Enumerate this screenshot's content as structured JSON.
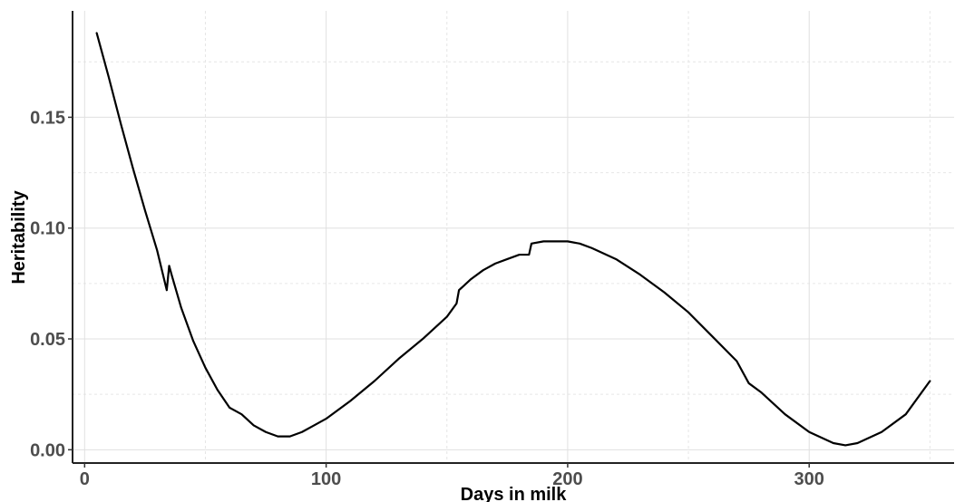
{
  "chart_data": {
    "type": "line",
    "title": "",
    "xlabel": "Days in milk",
    "ylabel": "Heritability",
    "xlim": [
      -5,
      360
    ],
    "ylim": [
      -0.006,
      0.198
    ],
    "x_ticks": [
      0,
      100,
      200,
      300
    ],
    "x_tick_labels": [
      "0",
      "100",
      "200",
      "300"
    ],
    "y_ticks": [
      0.0,
      0.05,
      0.1,
      0.15
    ],
    "y_tick_labels": [
      "0.00",
      "0.05",
      "0.10",
      "0.15"
    ],
    "grid": true,
    "legend": "none",
    "line_color": "#000000",
    "series": [
      {
        "x": [
          5,
          10,
          15,
          20,
          25,
          30,
          34,
          35,
          36,
          40,
          45,
          50,
          55,
          60,
          65,
          70,
          75,
          80,
          85,
          90,
          95,
          100,
          110,
          120,
          130,
          140,
          150,
          154,
          155,
          160,
          165,
          170,
          175,
          180,
          184,
          185,
          190,
          195,
          200,
          205,
          210,
          220,
          230,
          240,
          250,
          260,
          270,
          275,
          280,
          290,
          300,
          310,
          315,
          320,
          330,
          340,
          350
        ],
        "y": [
          0.188,
          0.168,
          0.147,
          0.127,
          0.108,
          0.09,
          0.072,
          0.083,
          0.079,
          0.064,
          0.049,
          0.037,
          0.027,
          0.019,
          0.016,
          0.011,
          0.008,
          0.006,
          0.006,
          0.008,
          0.011,
          0.014,
          0.022,
          0.031,
          0.041,
          0.05,
          0.06,
          0.066,
          0.072,
          0.077,
          0.081,
          0.084,
          0.086,
          0.088,
          0.088,
          0.093,
          0.094,
          0.094,
          0.094,
          0.093,
          0.091,
          0.086,
          0.079,
          0.071,
          0.062,
          0.051,
          0.04,
          0.03,
          0.026,
          0.016,
          0.008,
          0.003,
          0.002,
          0.003,
          0.008,
          0.016,
          0.031
        ]
      }
    ]
  }
}
